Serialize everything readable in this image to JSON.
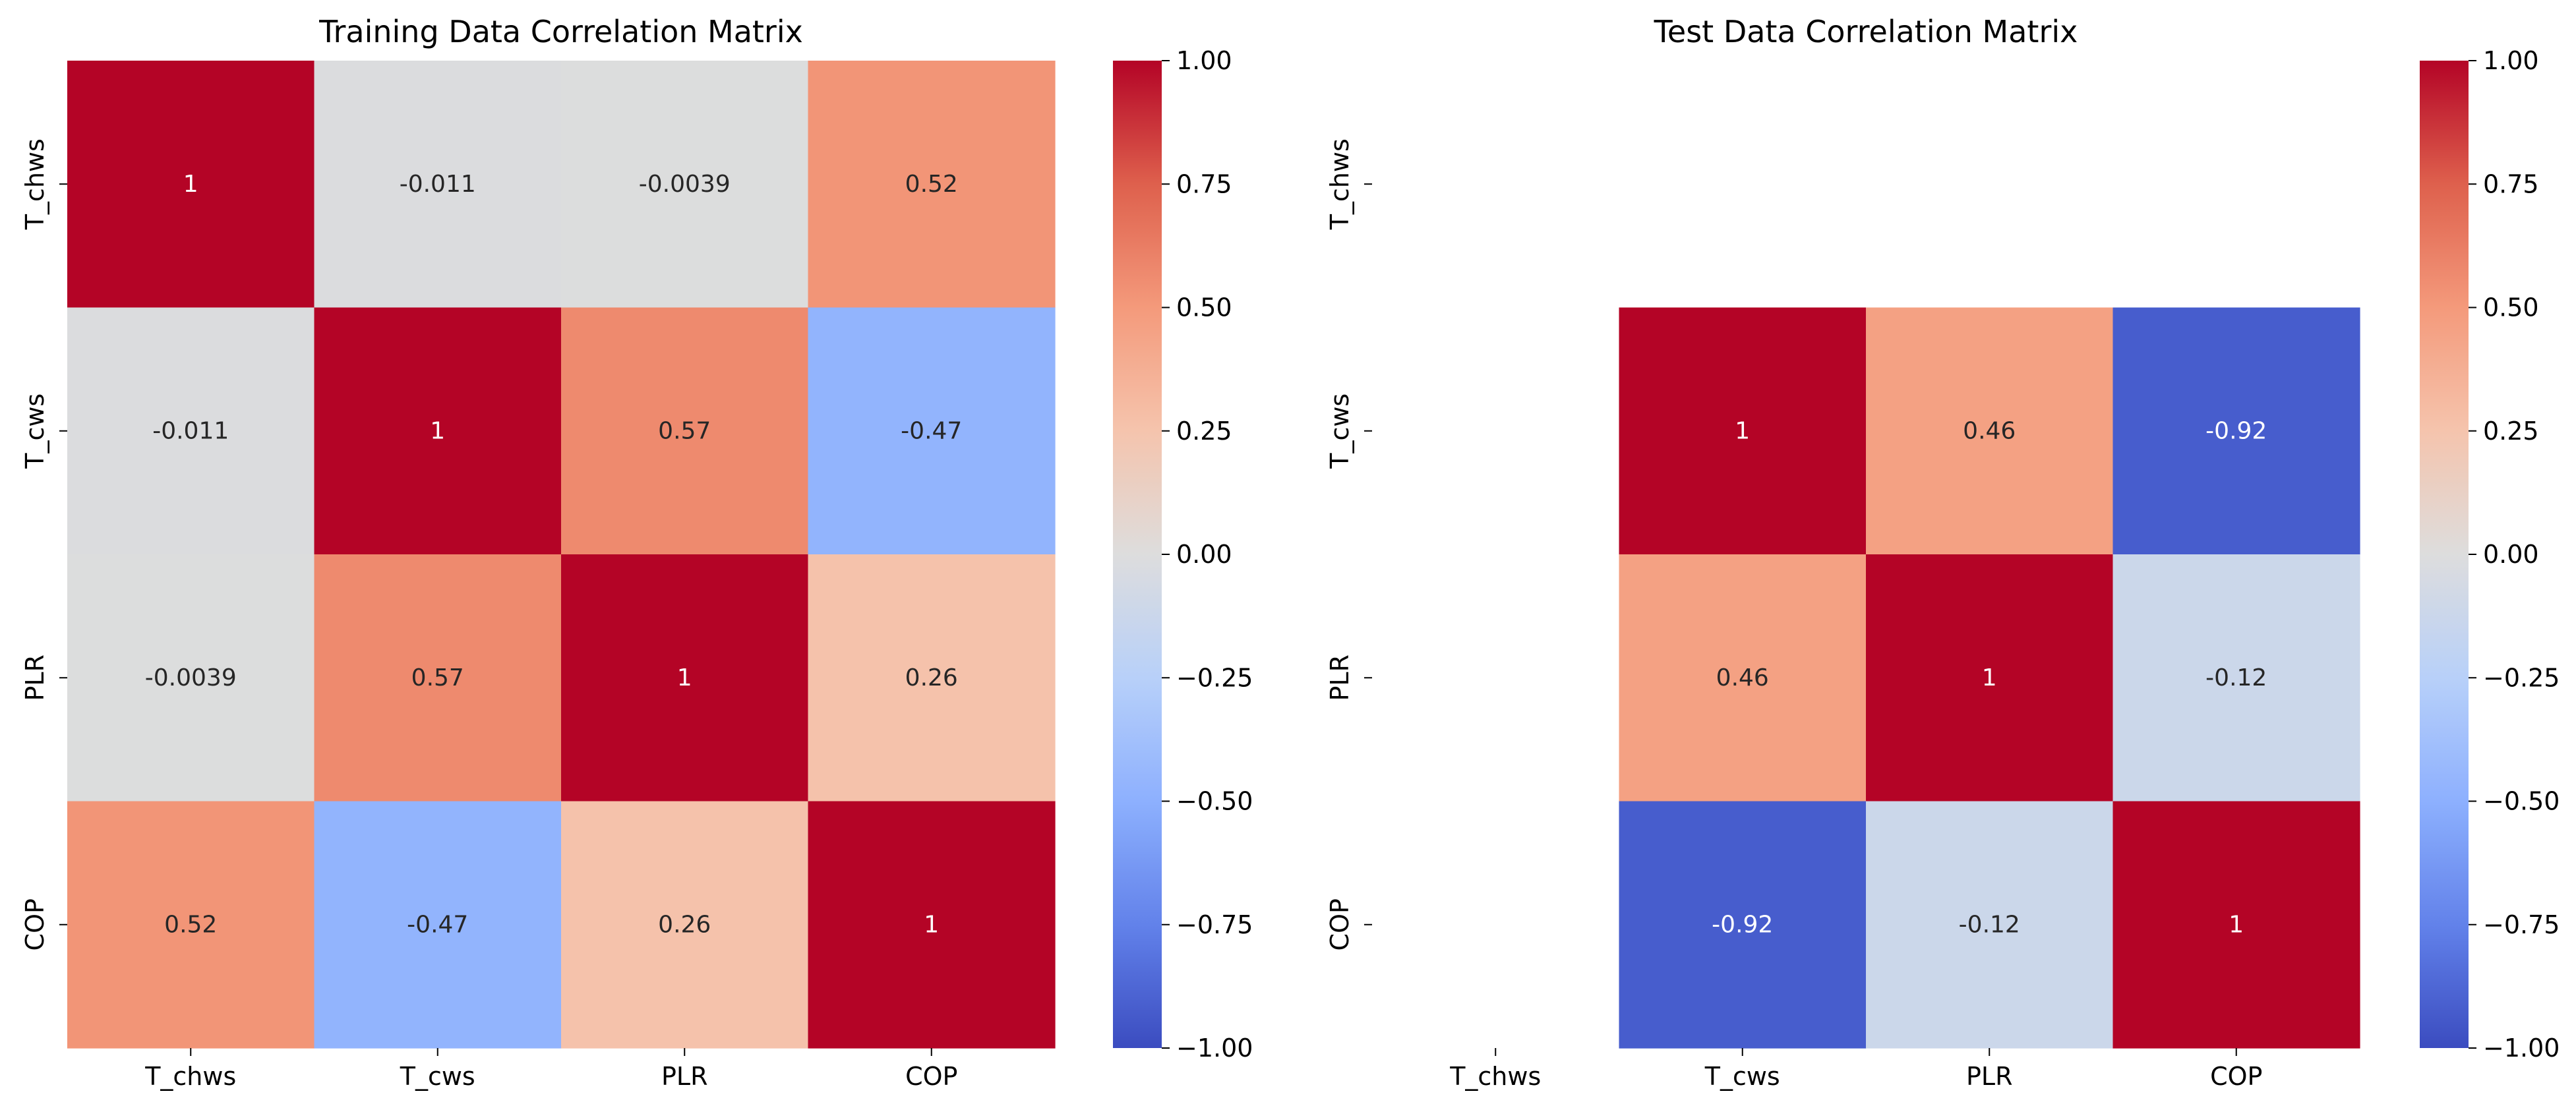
{
  "chart_data": [
    {
      "type": "heatmap",
      "id": "train",
      "title": "Training Data Correlation Matrix",
      "xlabel": "",
      "ylabel": "",
      "x_categories": [
        "T_chws",
        "T_cws",
        "PLR",
        "COP"
      ],
      "y_categories": [
        "T_chws",
        "T_cws",
        "PLR",
        "COP"
      ],
      "values": [
        [
          1,
          -0.011,
          -0.0039,
          0.52
        ],
        [
          -0.011,
          1,
          0.57,
          -0.47
        ],
        [
          -0.0039,
          0.57,
          1,
          0.26
        ],
        [
          0.52,
          -0.47,
          0.26,
          1
        ]
      ],
      "annotations": [
        [
          "1",
          "-0.011",
          "-0.0039",
          "0.52"
        ],
        [
          "-0.011",
          "1",
          "0.57",
          "-0.47"
        ],
        [
          "-0.0039",
          "0.57",
          "1",
          "0.26"
        ],
        [
          "0.52",
          "-0.47",
          "0.26",
          "1"
        ]
      ],
      "vmin": -1,
      "vmax": 1,
      "colormap": "coolwarm",
      "colorbar_ticks": [
        1.0,
        0.75,
        0.5,
        0.25,
        0.0,
        -0.25,
        -0.5,
        -0.75,
        -1.0
      ],
      "colorbar_tick_labels": [
        "1.00",
        "0.75",
        "0.50",
        "0.25",
        "0.00",
        "−0.25",
        "−0.50",
        "−0.75",
        "−1.00"
      ]
    },
    {
      "type": "heatmap",
      "id": "test",
      "title": "Test Data Correlation Matrix",
      "xlabel": "",
      "ylabel": "",
      "x_categories": [
        "T_chws",
        "T_cws",
        "PLR",
        "COP"
      ],
      "y_categories": [
        "T_chws",
        "T_cws",
        "PLR",
        "COP"
      ],
      "values": [
        [
          null,
          null,
          null,
          null
        ],
        [
          null,
          1,
          0.46,
          -0.92
        ],
        [
          null,
          0.46,
          1,
          -0.12
        ],
        [
          null,
          -0.92,
          -0.12,
          1
        ]
      ],
      "annotations": [
        [
          "",
          "",
          "",
          ""
        ],
        [
          "",
          "1",
          "0.46",
          "-0.92"
        ],
        [
          "",
          "0.46",
          "1",
          "-0.12"
        ],
        [
          "",
          "-0.92",
          "-0.12",
          "1"
        ]
      ],
      "vmin": -1,
      "vmax": 1,
      "colormap": "coolwarm",
      "colorbar_ticks": [
        1.0,
        0.75,
        0.5,
        0.25,
        0.0,
        -0.25,
        -0.5,
        -0.75,
        -1.0
      ],
      "colorbar_tick_labels": [
        "1.00",
        "0.75",
        "0.50",
        "0.25",
        "0.00",
        "−0.25",
        "−0.50",
        "−0.75",
        "−1.00"
      ]
    }
  ]
}
